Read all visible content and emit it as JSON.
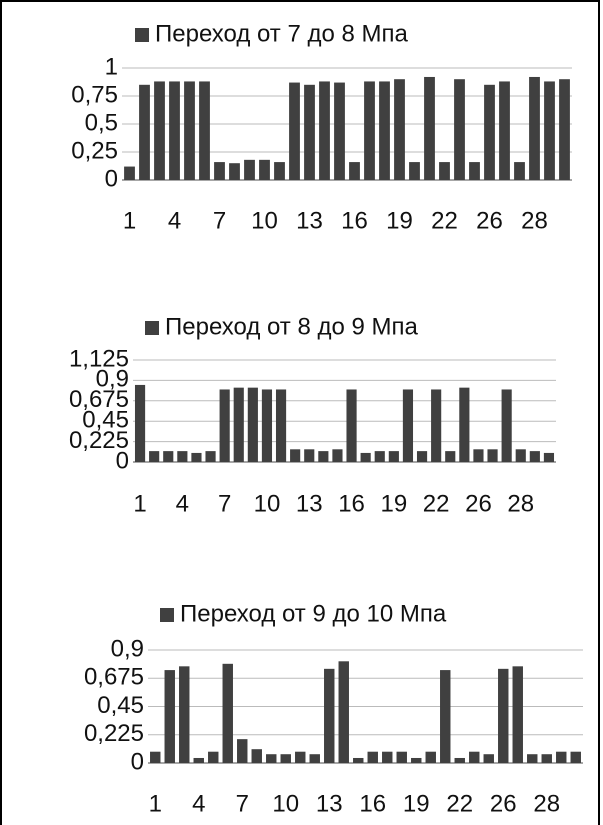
{
  "chart_data": [
    {
      "type": "bar",
      "categories": [
        "1",
        null,
        null,
        "4",
        null,
        null,
        "7",
        null,
        null,
        "10",
        null,
        null,
        "13",
        null,
        null,
        "16",
        null,
        null,
        "19",
        null,
        null,
        "22",
        null,
        null,
        "26",
        null,
        null,
        "28",
        null,
        null
      ],
      "series": [
        {
          "name": "Переход от 7 до 8 Мпа",
          "color": "#404040",
          "values": [
            0.12,
            0.85,
            0.88,
            0.88,
            0.88,
            0.88,
            0.16,
            0.15,
            0.18,
            0.18,
            0.16,
            0.87,
            0.85,
            0.88,
            0.87,
            0.16,
            0.88,
            0.88,
            0.9,
            0.16,
            0.92,
            0.16,
            0.9,
            0.16,
            0.85,
            0.88,
            0.16,
            0.92,
            0.88,
            0.9
          ]
        }
      ],
      "ylim": [
        0,
        1
      ],
      "yticks": [
        0,
        {
          "value": 0.25,
          "label": "0,25"
        },
        {
          "value": 0.5,
          "label": "0,5"
        },
        {
          "value": 0.75,
          "label": "0,75"
        },
        1
      ],
      "grid": true,
      "legend": "top"
    },
    {
      "type": "bar",
      "categories": [
        "1",
        null,
        null,
        "4",
        null,
        null,
        "7",
        null,
        null,
        "10",
        null,
        null,
        "13",
        null,
        null,
        "16",
        null,
        null,
        "19",
        null,
        null,
        "22",
        null,
        null,
        "26",
        null,
        null,
        "28",
        null,
        null
      ],
      "series": [
        {
          "name": "Переход от 8 до 9 Мпа",
          "color": "#404040",
          "values": [
            0.85,
            0.12,
            0.12,
            0.12,
            0.1,
            0.12,
            0.8,
            0.82,
            0.82,
            0.8,
            0.8,
            0.14,
            0.14,
            0.12,
            0.14,
            0.8,
            0.1,
            0.12,
            0.12,
            0.8,
            0.12,
            0.8,
            0.12,
            0.82,
            0.14,
            0.14,
            0.8,
            0.14,
            0.12,
            0.1
          ]
        }
      ],
      "ylim": [
        0,
        1.125
      ],
      "yticks": [
        0,
        {
          "value": 0.225,
          "label": "0,225"
        },
        {
          "value": 0.45,
          "label": "0,45"
        },
        {
          "value": 0.675,
          "label": "0,675"
        },
        {
          "value": 0.9,
          "label": "0,9"
        },
        {
          "value": 1.125,
          "label": "1,125"
        }
      ],
      "grid": true,
      "legend": "top"
    },
    {
      "type": "bar",
      "categories": [
        "1",
        null,
        null,
        "4",
        null,
        null,
        "7",
        null,
        null,
        "10",
        null,
        null,
        "13",
        null,
        null,
        "16",
        null,
        null,
        "19",
        null,
        null,
        "22",
        null,
        null,
        "26",
        null,
        null,
        "28",
        null,
        null
      ],
      "series": [
        {
          "name": "Переход от 9 до 10 Мпа",
          "color": "#404040",
          "values": [
            0.09,
            0.74,
            0.77,
            0.04,
            0.09,
            0.79,
            0.19,
            0.11,
            0.07,
            0.07,
            0.09,
            0.07,
            0.75,
            0.81,
            0.04,
            0.09,
            0.09,
            0.09,
            0.04,
            0.09,
            0.74,
            0.04,
            0.09,
            0.07,
            0.75,
            0.77,
            0.07,
            0.07,
            0.09,
            0.09
          ]
        }
      ],
      "ylim": [
        0,
        0.9
      ],
      "yticks": [
        0,
        {
          "value": 0.225,
          "label": "0,225"
        },
        {
          "value": 0.45,
          "label": "0,45"
        },
        {
          "value": 0.675,
          "label": "0,675"
        },
        {
          "value": 0.9,
          "label": "0,9"
        }
      ],
      "grid": true,
      "legend": "top"
    }
  ]
}
